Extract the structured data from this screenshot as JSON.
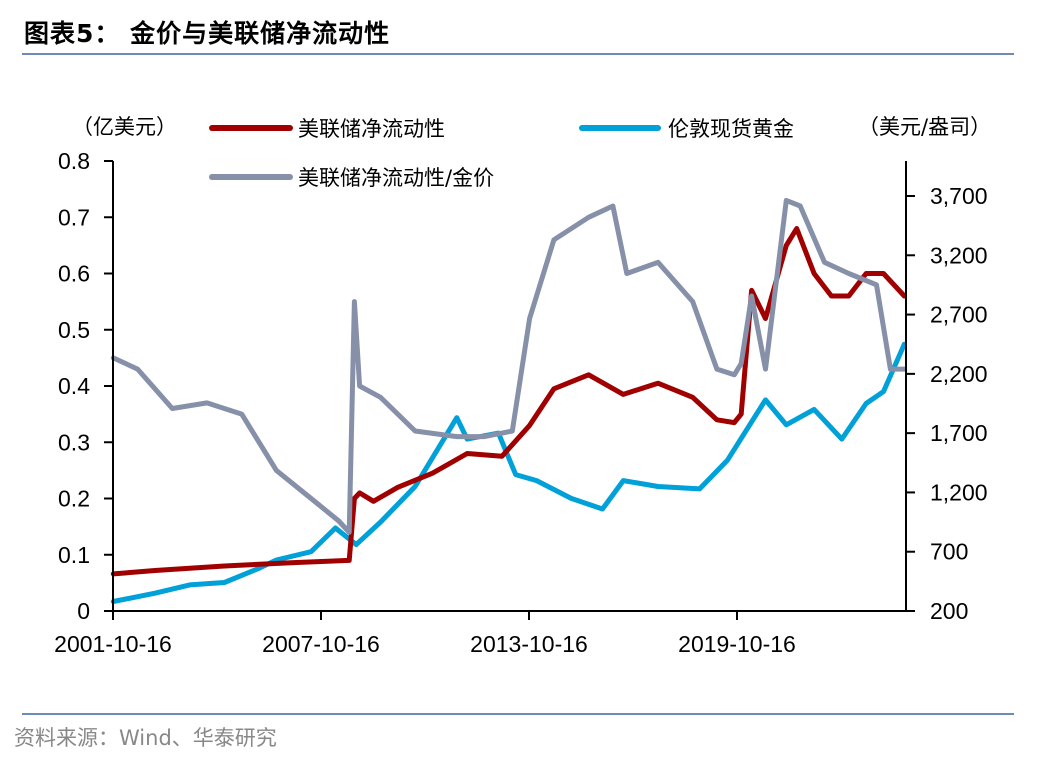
{
  "header": {
    "title": "图表5：  金价与美联储净流动性"
  },
  "footer": {
    "source": "资料来源：Wind、华泰研究"
  },
  "chart_data": {
    "type": "line",
    "title": "金价与美联储净流动性",
    "left_axis": {
      "label": "（亿美元）",
      "ticks": [
        "0",
        "0.1",
        "0.2",
        "0.3",
        "0.4",
        "0.5",
        "0.6",
        "0.7",
        "0.8"
      ],
      "ylim": [
        0,
        0.8
      ]
    },
    "right_axis": {
      "label": "（美元/盎司）",
      "ticks": [
        "200",
        "700",
        "1,200",
        "1,700",
        "2,200",
        "2,700",
        "3,200",
        "3,700"
      ],
      "ylim": [
        200,
        4000
      ]
    },
    "x_ticks": [
      "2001-10-16",
      "2007-10-16",
      "2013-10-16",
      "2019-10-16"
    ],
    "x_range_years": [
      2001.79,
      2024.65
    ],
    "legend": [
      {
        "name": "美联储净流动性",
        "color": "#a00000",
        "axis": "left"
      },
      {
        "name": "伦敦现货黄金",
        "color": "#00a0d8",
        "axis": "right"
      },
      {
        "name": "美联储净流动性/金价",
        "color": "#8690a8",
        "axis": "left"
      }
    ],
    "series": [
      {
        "name": "美联储净流动性",
        "axis": "left",
        "color": "#a00000",
        "x": [
          2001.8,
          2003,
          2005,
          2007,
          2008.6,
          2008.75,
          2008.9,
          2009.3,
          2010,
          2011,
          2012,
          2013,
          2013.8,
          2014.5,
          2015.5,
          2016.5,
          2017.5,
          2018.5,
          2019.2,
          2019.7,
          2019.9,
          2020.2,
          2020.6,
          2021.2,
          2021.5,
          2022,
          2022.5,
          2023,
          2023.5,
          2024,
          2024.6
        ],
        "values": [
          0.066,
          0.072,
          0.08,
          0.086,
          0.09,
          0.2,
          0.21,
          0.195,
          0.22,
          0.245,
          0.28,
          0.275,
          0.33,
          0.395,
          0.42,
          0.385,
          0.405,
          0.38,
          0.34,
          0.335,
          0.35,
          0.57,
          0.52,
          0.65,
          0.68,
          0.6,
          0.56,
          0.56,
          0.6,
          0.6,
          0.56
        ]
      },
      {
        "name": "伦敦现货黄金",
        "axis": "right",
        "color": "#00a0d8",
        "x": [
          2001.8,
          2003,
          2004,
          2005,
          2006,
          2006.5,
          2007.5,
          2008.2,
          2008.8,
          2009.5,
          2010.5,
          2011.7,
          2012,
          2012.9,
          2013.4,
          2014,
          2015,
          2015.9,
          2016.5,
          2017.5,
          2018.7,
          2019.5,
          2020.6,
          2021.2,
          2022,
          2022.8,
          2023.5,
          2024,
          2024.6
        ],
        "values": [
          280,
          350,
          420,
          440,
          560,
          630,
          700,
          900,
          760,
          950,
          1250,
          1830,
          1650,
          1700,
          1350,
          1300,
          1150,
          1060,
          1300,
          1250,
          1230,
          1470,
          1980,
          1770,
          1900,
          1650,
          1950,
          2050,
          2450
        ]
      },
      {
        "name": "美联储净流动性/金价",
        "axis": "left",
        "color": "#8690a8",
        "x": [
          2001.8,
          2002.5,
          2003.5,
          2004.5,
          2005.5,
          2006.5,
          2007.5,
          2008.3,
          2008.6,
          2008.75,
          2008.9,
          2009.5,
          2010.5,
          2011.7,
          2012.5,
          2013.3,
          2013.8,
          2014.5,
          2015.5,
          2016.2,
          2016.6,
          2017.5,
          2018.5,
          2019.2,
          2019.7,
          2019.9,
          2020.2,
          2020.6,
          2021.2,
          2021.6,
          2022.3,
          2023,
          2023.8,
          2024.2,
          2024.6
        ],
        "values": [
          0.45,
          0.43,
          0.36,
          0.37,
          0.35,
          0.25,
          0.2,
          0.16,
          0.14,
          0.55,
          0.4,
          0.38,
          0.32,
          0.31,
          0.31,
          0.32,
          0.52,
          0.66,
          0.7,
          0.72,
          0.6,
          0.62,
          0.55,
          0.43,
          0.42,
          0.44,
          0.56,
          0.43,
          0.73,
          0.72,
          0.62,
          0.6,
          0.58,
          0.43,
          0.43
        ]
      }
    ]
  }
}
